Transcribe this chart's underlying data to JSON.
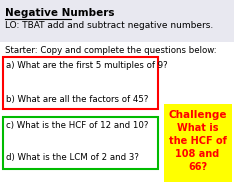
{
  "title": "Negative Numbers",
  "lo": "LO: TBAT add and subtract negative numbers.",
  "starter": "Starter: Copy and complete the questions below:",
  "q_a": "a) What are the first 5 multiples of 9?",
  "q_b": "b) What are all the factors of 45?",
  "q_c": "c) What is the HCF of 12 and 10?",
  "q_d": "d) What is the LCM of 2 and 3?",
  "challenge_line1": "Challenge",
  "challenge_line2": "What is",
  "challenge_line3": "the HCF of",
  "challenge_line4": "108 and",
  "challenge_line5": "66?",
  "header_bg": "#e8e8f0",
  "box_red": "#ff0000",
  "box_green": "#00bb00",
  "challenge_bg": "#ffff00",
  "challenge_text": "#ff0000",
  "bg": "#ffffff"
}
